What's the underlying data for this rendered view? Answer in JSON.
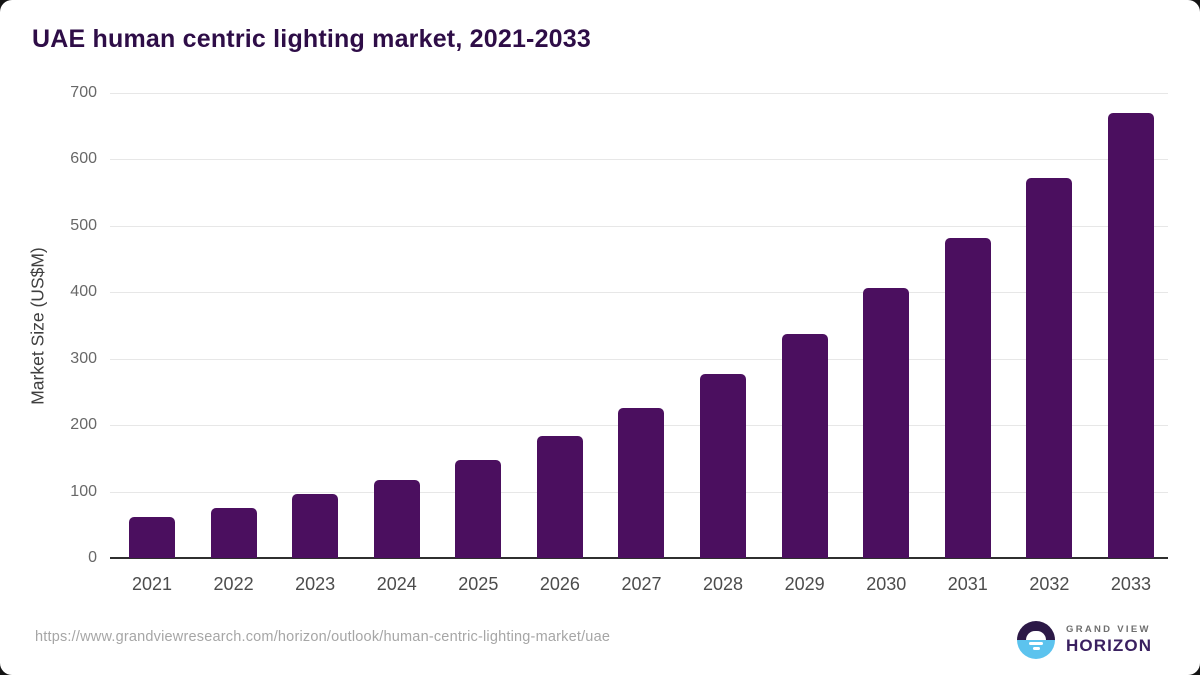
{
  "header": {
    "title": "UAE human centric lighting market, 2021-2033",
    "title_color": "#2e0d47"
  },
  "chart_data": {
    "type": "bar",
    "title": "UAE human centric lighting market, 2021-2033",
    "categories": [
      "2021",
      "2022",
      "2023",
      "2024",
      "2025",
      "2026",
      "2027",
      "2028",
      "2029",
      "2030",
      "2031",
      "2032",
      "2033"
    ],
    "values": [
      61,
      76,
      96,
      118,
      148,
      183,
      226,
      277,
      337,
      406,
      482,
      572,
      670
    ],
    "xlabel": "",
    "ylabel": "Market Size (US$M)",
    "ylim": [
      0,
      700
    ],
    "yticks": [
      0,
      100,
      200,
      300,
      400,
      500,
      600,
      700
    ],
    "grid": "horizontal-only",
    "legend_position": "none",
    "bar_color": "#4b0f5f"
  },
  "footer": {
    "source_url": "https://www.grandviewresearch.com/horizon/outlook/human-centric-lighting-market/uae",
    "logo": {
      "line1": "GRAND VIEW",
      "line2": "HORIZON",
      "line2_color": "#3a2060",
      "mark_top_color": "#2c1947",
      "mark_bottom_color": "#5cc3ee"
    }
  }
}
